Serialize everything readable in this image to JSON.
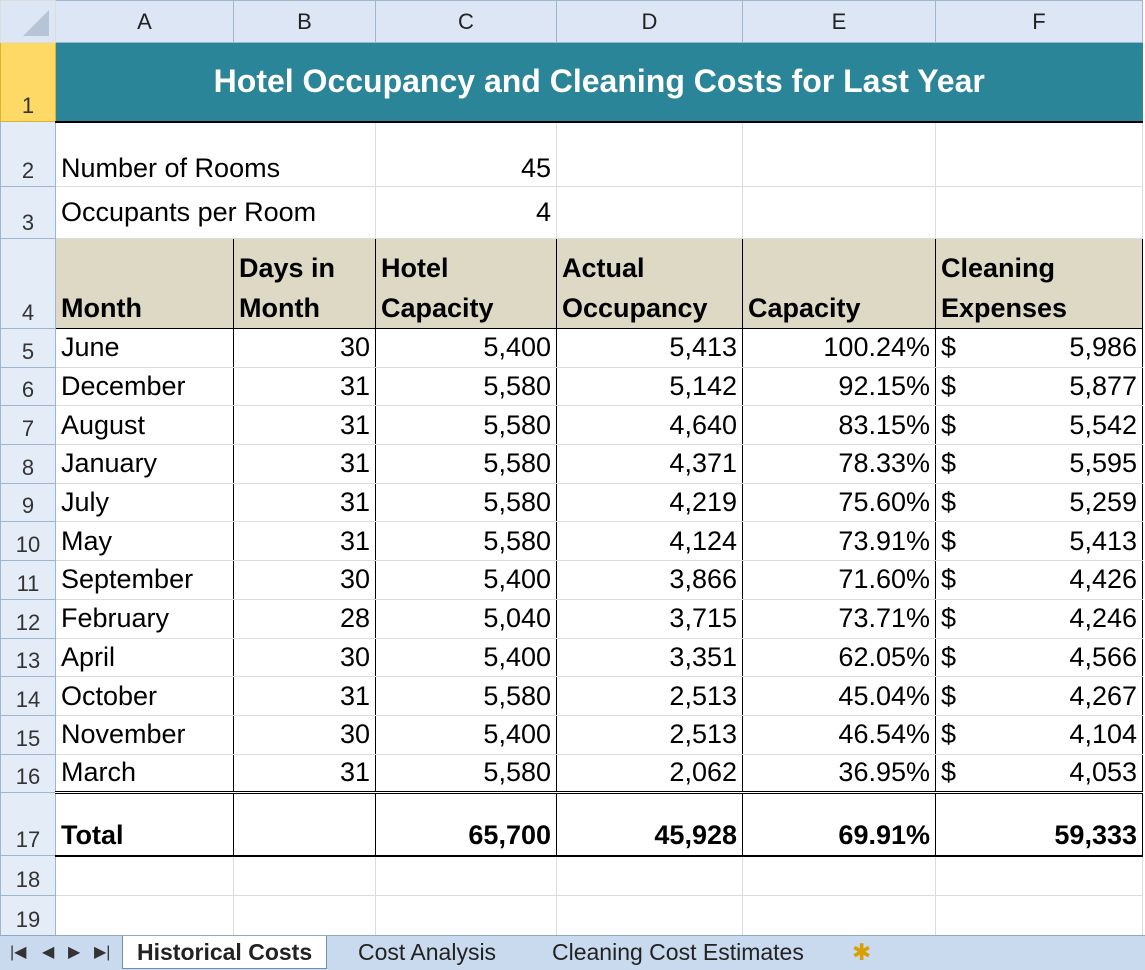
{
  "columns": [
    "A",
    "B",
    "C",
    "D",
    "E",
    "F"
  ],
  "title": "Hotel Occupancy and Cleaning Costs for Last Year",
  "params": [
    {
      "label": "Number of Rooms",
      "value": "45"
    },
    {
      "label": "Occupants per Room",
      "value": "4"
    }
  ],
  "headers": {
    "month": "Month",
    "days": "Days in Month",
    "hotel_capacity": "Hotel Capacity",
    "actual_occupancy": "Actual Occupancy",
    "capacity": "Capacity",
    "cleaning": "Cleaning Expenses"
  },
  "rows": [
    {
      "month": "June",
      "days": "30",
      "cap": "5,400",
      "occ": "5,413",
      "pct": "100.24%",
      "cur": "$",
      "exp": "5,986"
    },
    {
      "month": "December",
      "days": "31",
      "cap": "5,580",
      "occ": "5,142",
      "pct": "92.15%",
      "cur": "$",
      "exp": "5,877"
    },
    {
      "month": "August",
      "days": "31",
      "cap": "5,580",
      "occ": "4,640",
      "pct": "83.15%",
      "cur": "$",
      "exp": "5,542"
    },
    {
      "month": "January",
      "days": "31",
      "cap": "5,580",
      "occ": "4,371",
      "pct": "78.33%",
      "cur": "$",
      "exp": "5,595"
    },
    {
      "month": "July",
      "days": "31",
      "cap": "5,580",
      "occ": "4,219",
      "pct": "75.60%",
      "cur": "$",
      "exp": "5,259"
    },
    {
      "month": "May",
      "days": "31",
      "cap": "5,580",
      "occ": "4,124",
      "pct": "73.91%",
      "cur": "$",
      "exp": "5,413"
    },
    {
      "month": "September",
      "days": "30",
      "cap": "5,400",
      "occ": "3,866",
      "pct": "71.60%",
      "cur": "$",
      "exp": "4,426"
    },
    {
      "month": "February",
      "days": "28",
      "cap": "5,040",
      "occ": "3,715",
      "pct": "73.71%",
      "cur": "$",
      "exp": "4,246"
    },
    {
      "month": "April",
      "days": "30",
      "cap": "5,400",
      "occ": "3,351",
      "pct": "62.05%",
      "cur": "$",
      "exp": "4,566"
    },
    {
      "month": "October",
      "days": "31",
      "cap": "5,580",
      "occ": "2,513",
      "pct": "45.04%",
      "cur": "$",
      "exp": "4,267"
    },
    {
      "month": "November",
      "days": "30",
      "cap": "5,400",
      "occ": "2,513",
      "pct": "46.54%",
      "cur": "$",
      "exp": "4,104"
    },
    {
      "month": "March",
      "days": "31",
      "cap": "5,580",
      "occ": "2,062",
      "pct": "36.95%",
      "cur": "$",
      "exp": "4,053"
    }
  ],
  "total": {
    "label": "Total",
    "cap": "65,700",
    "occ": "45,928",
    "pct": "69.91%",
    "exp": "59,333"
  },
  "row_numbers": [
    "1",
    "2",
    "3",
    "4",
    "5",
    "6",
    "7",
    "8",
    "9",
    "10",
    "11",
    "12",
    "13",
    "14",
    "15",
    "16",
    "17",
    "18",
    "19"
  ],
  "tabs": [
    {
      "label": "Historical Costs",
      "active": true
    },
    {
      "label": "Cost Analysis",
      "active": false
    },
    {
      "label": "Cleaning Cost Estimates",
      "active": false
    }
  ],
  "colors": {
    "title_bg": "#2a8599",
    "header_bg": "#ddd9c4",
    "selected_row_header": "#ffd966"
  }
}
